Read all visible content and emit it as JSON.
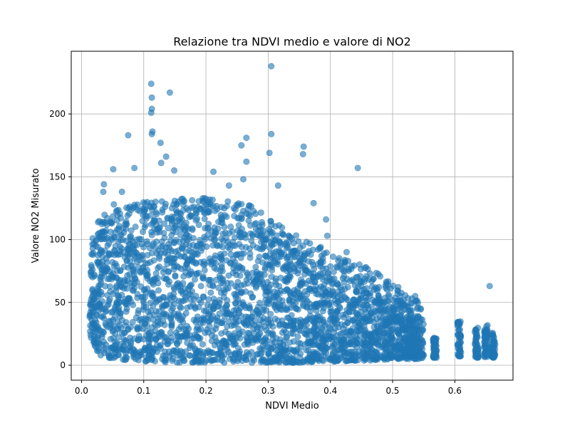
{
  "chart_data": {
    "type": "scatter",
    "title": "Relazione tra NDVI medio e valore di NO2",
    "xlabel": "NDVI Medio",
    "ylabel": "Valore NO2 Misurato",
    "xlim": [
      -0.0165,
      0.6935
    ],
    "ylim": [
      -11.9,
      249.9
    ],
    "x_ticks": [
      0.0,
      0.1,
      0.2,
      0.3,
      0.4,
      0.5,
      0.6
    ],
    "x_tick_labels": [
      "0.0",
      "0.1",
      "0.2",
      "0.3",
      "0.4",
      "0.5",
      "0.6"
    ],
    "y_ticks": [
      0,
      50,
      100,
      150,
      200
    ],
    "y_tick_labels": [
      "0",
      "50",
      "100",
      "150",
      "200"
    ],
    "grid": true,
    "legend": "none",
    "marker_color": "#1f77b4",
    "marker_alpha": 0.6,
    "density_envelope": {
      "ndvi": [
        0.013,
        0.02,
        0.03,
        0.05,
        0.08,
        0.1,
        0.15,
        0.2,
        0.25,
        0.28,
        0.3,
        0.35,
        0.38,
        0.4,
        0.45,
        0.48,
        0.5,
        0.52,
        0.55
      ],
      "no2_low": [
        25,
        15,
        8,
        5,
        4,
        3,
        2,
        2,
        2,
        2,
        2,
        2,
        3,
        3,
        3,
        4,
        5,
        5,
        5
      ],
      "no2_high": [
        60,
        90,
        100,
        105,
        110,
        112,
        115,
        115,
        112,
        110,
        98,
        85,
        78,
        70,
        62,
        55,
        48,
        40,
        35
      ]
    },
    "clusters": [
      {
        "ndvi": 0.568,
        "no2_range": [
          6,
          22
        ]
      },
      {
        "ndvi": 0.607,
        "no2_range": [
          7,
          35
        ]
      },
      {
        "ndvi": 0.635,
        "no2_range": [
          6,
          30
        ]
      },
      {
        "ndvi": 0.65,
        "no2_range": [
          6,
          33
        ]
      },
      {
        "ndvi": 0.662,
        "no2_range": [
          6,
          26
        ]
      }
    ],
    "outliers": [
      {
        "x": 0.305,
        "y": 238
      },
      {
        "x": 0.112,
        "y": 224
      },
      {
        "x": 0.142,
        "y": 217
      },
      {
        "x": 0.113,
        "y": 213
      },
      {
        "x": 0.113,
        "y": 204
      },
      {
        "x": 0.112,
        "y": 201
      },
      {
        "x": 0.113,
        "y": 184
      },
      {
        "x": 0.114,
        "y": 186
      },
      {
        "x": 0.075,
        "y": 183
      },
      {
        "x": 0.305,
        "y": 184
      },
      {
        "x": 0.265,
        "y": 181
      },
      {
        "x": 0.257,
        "y": 175
      },
      {
        "x": 0.127,
        "y": 177
      },
      {
        "x": 0.357,
        "y": 174
      },
      {
        "x": 0.356,
        "y": 168
      },
      {
        "x": 0.302,
        "y": 169
      },
      {
        "x": 0.265,
        "y": 162
      },
      {
        "x": 0.136,
        "y": 166
      },
      {
        "x": 0.149,
        "y": 155
      },
      {
        "x": 0.212,
        "y": 154
      },
      {
        "x": 0.444,
        "y": 157
      },
      {
        "x": 0.051,
        "y": 156
      },
      {
        "x": 0.26,
        "y": 148
      },
      {
        "x": 0.237,
        "y": 143
      },
      {
        "x": 0.316,
        "y": 143
      },
      {
        "x": 0.085,
        "y": 157
      },
      {
        "x": 0.035,
        "y": 138
      },
      {
        "x": 0.065,
        "y": 138
      },
      {
        "x": 0.052,
        "y": 128
      },
      {
        "x": 0.373,
        "y": 129
      },
      {
        "x": 0.393,
        "y": 116
      },
      {
        "x": 0.395,
        "y": 103
      },
      {
        "x": 0.426,
        "y": 90
      },
      {
        "x": 0.036,
        "y": 144
      },
      {
        "x": 0.128,
        "y": 161
      },
      {
        "x": 0.656,
        "y": 63
      },
      {
        "x": 0.54,
        "y": 46
      },
      {
        "x": 0.028,
        "y": 105
      },
      {
        "x": 0.018,
        "y": 101
      }
    ]
  }
}
